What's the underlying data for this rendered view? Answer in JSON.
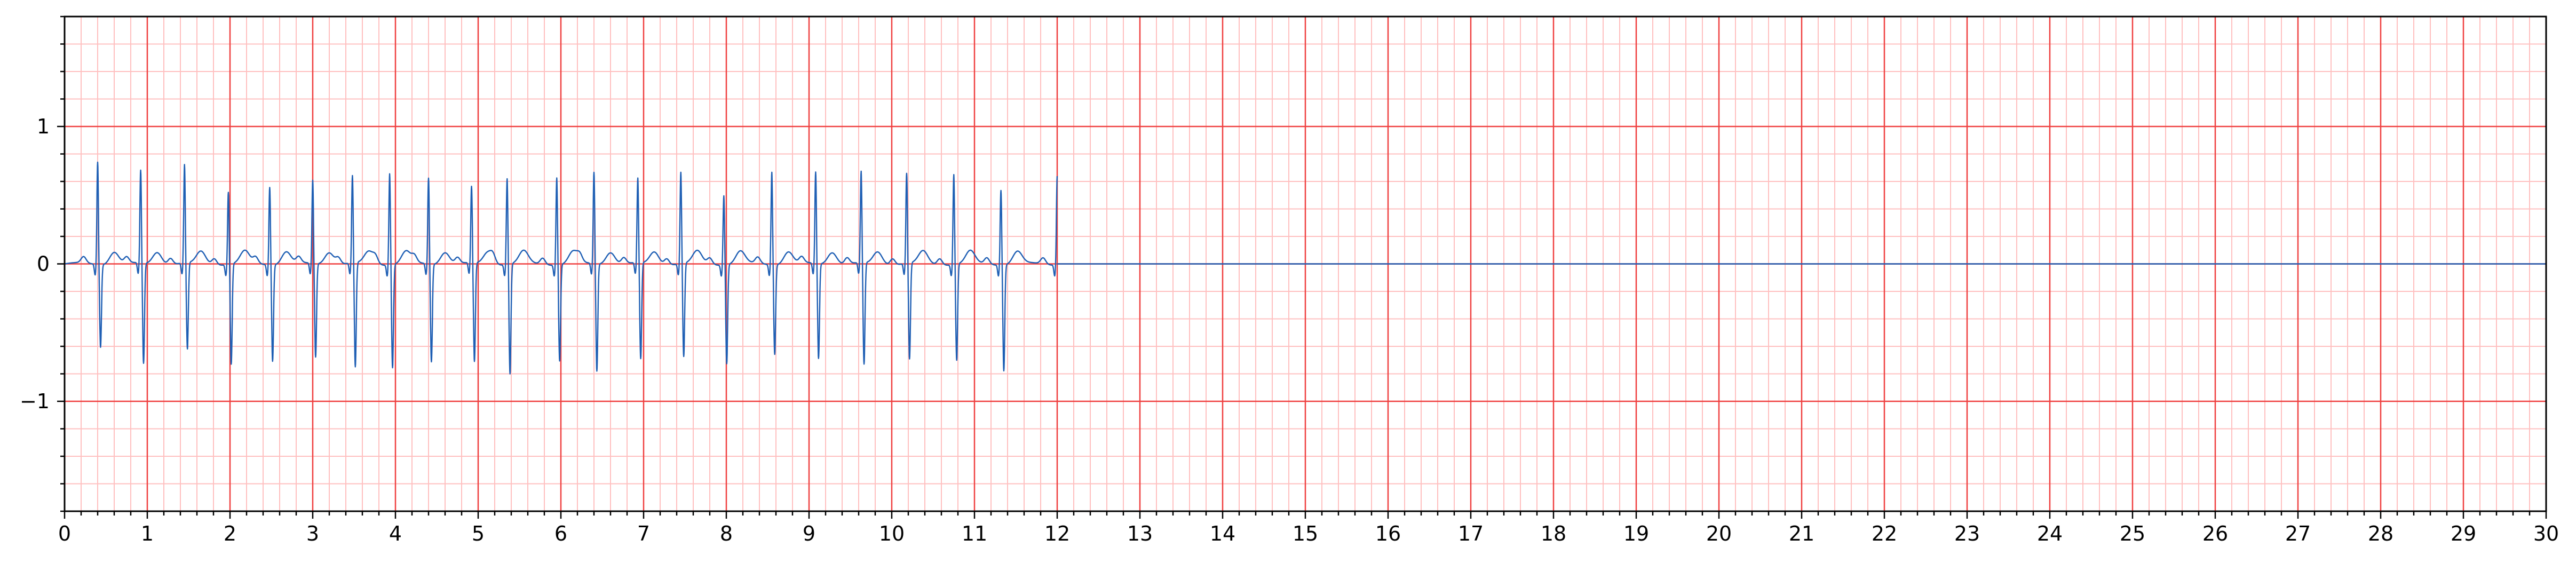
{
  "chart_data": {
    "type": "line",
    "title": "",
    "xlabel": "",
    "ylabel": "",
    "xlim": [
      0,
      30
    ],
    "ylim": [
      -1.8,
      1.8
    ],
    "x_ticks": [
      "0",
      "1",
      "2",
      "3",
      "4",
      "5",
      "6",
      "7",
      "8",
      "9",
      "10",
      "11",
      "12",
      "13",
      "14",
      "15",
      "16",
      "17",
      "18",
      "19",
      "20",
      "21",
      "22",
      "23",
      "24",
      "25",
      "26",
      "27",
      "28",
      "29",
      "30"
    ],
    "y_ticks": [
      "1",
      "0",
      "−1"
    ],
    "x_tick_values": [
      0,
      1,
      2,
      3,
      4,
      5,
      6,
      7,
      8,
      9,
      10,
      11,
      12,
      13,
      14,
      15,
      16,
      17,
      18,
      19,
      20,
      21,
      22,
      23,
      24,
      25,
      26,
      27,
      28,
      29,
      30
    ],
    "y_tick_values": [
      1,
      0,
      -1
    ],
    "grid": true,
    "background": "ecg-paper",
    "major_grid_step": [
      1,
      1
    ],
    "minor_grid_step": [
      0.2,
      0.2
    ],
    "colors": {
      "major_grid": "#ef4040",
      "minor_grid": "#ffc0c0",
      "signal": "#1f5fb4",
      "axes": "#000000"
    },
    "series": [
      {
        "signal_end_s": 12.0,
        "baseline_after_end": 0.0,
        "beats": [
          {
            "t": 0.4,
            "r": 0.75,
            "s": -0.6
          },
          {
            "t": 0.92,
            "r": 0.68,
            "s": -0.73
          },
          {
            "t": 1.45,
            "r": 0.72,
            "s": -0.63
          },
          {
            "t": 1.98,
            "r": 0.53,
            "s": -0.73
          },
          {
            "t": 2.48,
            "r": 0.57,
            "s": -0.7
          },
          {
            "t": 3.0,
            "r": 0.61,
            "s": -0.68
          },
          {
            "t": 3.48,
            "r": 0.64,
            "s": -0.76
          },
          {
            "t": 3.93,
            "r": 0.67,
            "s": -0.75
          },
          {
            "t": 4.4,
            "r": 0.63,
            "s": -0.71
          },
          {
            "t": 4.92,
            "r": 0.56,
            "s": -0.72
          },
          {
            "t": 5.35,
            "r": 0.63,
            "s": -0.8
          },
          {
            "t": 5.95,
            "r": 0.64,
            "s": -0.7
          },
          {
            "t": 6.4,
            "r": 0.67,
            "s": -0.78
          },
          {
            "t": 6.93,
            "r": 0.62,
            "s": -0.7
          },
          {
            "t": 7.45,
            "r": 0.67,
            "s": -0.68
          },
          {
            "t": 7.97,
            "r": 0.51,
            "s": -0.72
          },
          {
            "t": 8.55,
            "r": 0.68,
            "s": -0.65
          },
          {
            "t": 9.08,
            "r": 0.67,
            "s": -0.69
          },
          {
            "t": 9.63,
            "r": 0.67,
            "s": -0.74
          },
          {
            "t": 10.18,
            "r": 0.66,
            "s": -0.7
          },
          {
            "t": 10.75,
            "r": 0.66,
            "s": -0.7
          },
          {
            "t": 11.32,
            "r": 0.55,
            "s": -0.77
          },
          {
            "t": 12.0,
            "r": 0.65,
            "s": -0.1
          }
        ]
      }
    ]
  }
}
